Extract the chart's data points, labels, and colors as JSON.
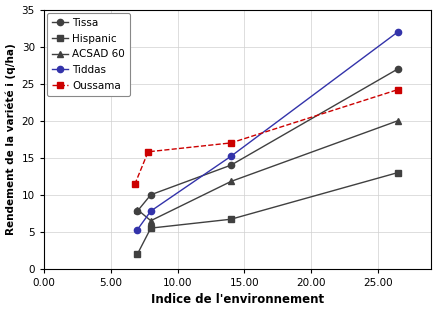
{
  "series": [
    {
      "name": "Tissa",
      "x": [
        7.0,
        8.0,
        14.0,
        26.5
      ],
      "y": [
        7.8,
        10.0,
        14.0,
        27.0
      ],
      "color": "#404040",
      "marker": "o",
      "linestyle": "-"
    },
    {
      "name": "Hispanic",
      "x": [
        7.0,
        8.0,
        14.0,
        26.5
      ],
      "y": [
        2.0,
        5.5,
        6.7,
        13.0
      ],
      "color": "#404040",
      "marker": "s",
      "linestyle": "-"
    },
    {
      "name": "ACSAD 60",
      "x": [
        7.0,
        8.0,
        14.0,
        26.5
      ],
      "y": [
        8.0,
        6.5,
        11.8,
        20.0
      ],
      "color": "#404040",
      "marker": "^",
      "linestyle": "-"
    },
    {
      "name": "Tiddas",
      "x": [
        7.0,
        8.0,
        14.0,
        26.5
      ],
      "y": [
        5.3,
        7.8,
        15.2,
        32.0
      ],
      "color": "#3333AA",
      "marker": "o",
      "linestyle": "-"
    },
    {
      "name": "Oussama",
      "x": [
        6.8,
        7.8,
        14.0,
        26.5
      ],
      "y": [
        11.4,
        15.8,
        17.0,
        24.2
      ],
      "color": "#CC0000",
      "marker": "s",
      "linestyle": "--"
    }
  ],
  "xlabel": "Indice de l'environnement",
  "ylabel": "Rendement de la variété i (q/ha)",
  "xlim": [
    0.0,
    29.0
  ],
  "ylim": [
    0,
    35
  ],
  "xticks": [
    0.0,
    5.0,
    10.0,
    15.0,
    20.0,
    25.0
  ],
  "yticks": [
    0,
    5,
    10,
    15,
    20,
    25,
    30,
    35
  ],
  "grid": true,
  "background_color": "#ffffff"
}
